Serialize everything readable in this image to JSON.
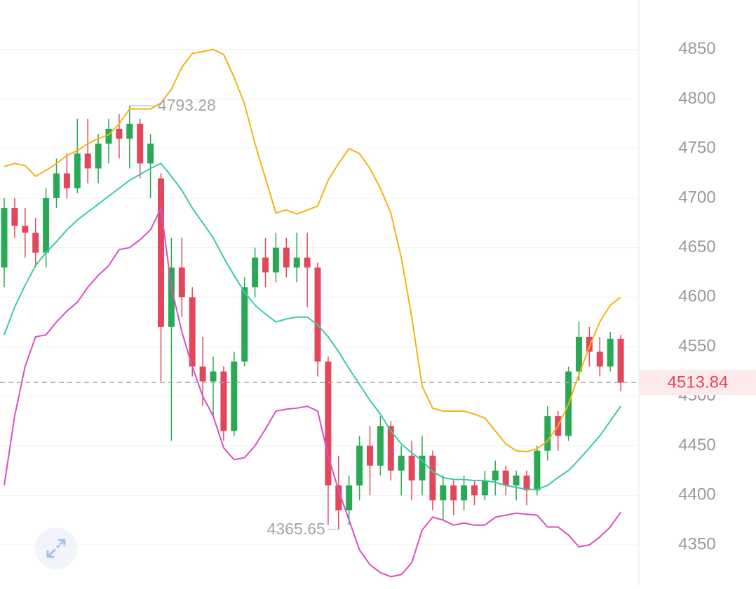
{
  "chart_data": {
    "type": "candlestick",
    "ylim": [
      4309,
      4900
    ],
    "yticks": [
      4350,
      4400,
      4450,
      4500,
      4550,
      4600,
      4650,
      4700,
      4750,
      4800,
      4850
    ],
    "grid": true,
    "up_color": "#2aa955",
    "down_color": "#e4475b",
    "open": [
      4630,
      4690,
      4672,
      4665,
      4645,
      4700,
      4725,
      4710,
      4745,
      4730,
      4755,
      4770,
      4760,
      4775,
      4735,
      4720,
      4570,
      4630,
      4600,
      4530,
      4515,
      4525,
      4465,
      4535,
      4610,
      4640,
      4625,
      4650,
      4630,
      4640,
      4630,
      4535,
      4410,
      4385,
      4410,
      4450,
      4430,
      4470,
      4425,
      4440,
      4415,
      4440,
      4395,
      4410,
      4395,
      4410,
      4400,
      4415,
      4425,
      4410,
      4420,
      4405,
      4445,
      4480,
      4460,
      4525,
      4560,
      4545,
      4530,
      4558
    ],
    "high": [
      4700,
      4700,
      4690,
      4680,
      4710,
      4740,
      4745,
      4780,
      4780,
      4765,
      4780,
      4785,
      4793.28,
      4780,
      4765,
      4725,
      4660,
      4660,
      4610,
      4560,
      4540,
      4530,
      4545,
      4620,
      4650,
      4660,
      4665,
      4660,
      4665,
      4665,
      4635,
      4540,
      4440,
      4420,
      4460,
      4470,
      4480,
      4475,
      4450,
      4455,
      4460,
      4445,
      4420,
      4415,
      4420,
      4415,
      4425,
      4435,
      4430,
      4425,
      4425,
      4450,
      4490,
      4485,
      4530,
      4575,
      4570,
      4560,
      4565,
      4562
    ],
    "low": [
      4610,
      4660,
      4640,
      4630,
      4630,
      4690,
      4700,
      4705,
      4715,
      4715,
      4735,
      4740,
      4730,
      4720,
      4700,
      4515,
      4455,
      4580,
      4520,
      4490,
      4480,
      4455,
      4460,
      4530,
      4600,
      4610,
      4615,
      4620,
      4615,
      4590,
      4520,
      4370,
      4365.65,
      4370,
      4395,
      4400,
      4420,
      4415,
      4400,
      4395,
      4400,
      4385,
      4375,
      4380,
      4385,
      4390,
      4395,
      4400,
      4400,
      4395,
      4390,
      4400,
      4435,
      4445,
      4455,
      4515,
      4530,
      4520,
      4525,
      4505
    ],
    "close": [
      4690,
      4672,
      4665,
      4645,
      4700,
      4725,
      4710,
      4745,
      4730,
      4755,
      4770,
      4760,
      4775,
      4735,
      4755,
      4570,
      4630,
      4600,
      4530,
      4515,
      4525,
      4465,
      4535,
      4610,
      4640,
      4625,
      4650,
      4630,
      4640,
      4630,
      4535,
      4410,
      4385,
      4410,
      4450,
      4430,
      4470,
      4425,
      4440,
      4415,
      4440,
      4395,
      4410,
      4395,
      4410,
      4400,
      4415,
      4425,
      4410,
      4420,
      4405,
      4445,
      4480,
      4460,
      4525,
      4560,
      4545,
      4530,
      4558,
      4513.84
    ],
    "lines": [
      {
        "color": "#f0b514",
        "values": [
          4732,
          4735,
          4733,
          4722,
          4728,
          4735,
          4743,
          4748,
          4755,
          4760,
          4764,
          4775,
          4790,
          4790,
          4790,
          4796,
          4810,
          4832,
          4846,
          4848,
          4850,
          4845,
          4822,
          4795,
          4755,
          4720,
          4685,
          4688,
          4684,
          4688,
          4692,
          4718,
          4735,
          4750,
          4745,
          4730,
          4710,
          4685,
          4640,
          4580,
          4510,
          4488,
          4485,
          4485,
          4485,
          4482,
          4478,
          4465,
          4452,
          4445,
          4444,
          4447,
          4455,
          4470,
          4492,
          4522,
          4550,
          4575,
          4592,
          4600
        ]
      },
      {
        "color": "#3ccaa4",
        "values": [
          4562,
          4590,
          4612,
          4632,
          4645,
          4656,
          4668,
          4678,
          4686,
          4694,
          4702,
          4710,
          4718,
          4724,
          4730,
          4735,
          4722,
          4708,
          4690,
          4675,
          4660,
          4640,
          4622,
          4605,
          4592,
          4583,
          4575,
          4578,
          4580,
          4580,
          4572,
          4560,
          4545,
          4528,
          4512,
          4496,
          4482,
          4465,
          4452,
          4443,
          4435,
          4424,
          4418,
          4416,
          4416,
          4415,
          4415,
          4413,
          4410,
          4408,
          4406,
          4406,
          4410,
          4418,
          4425,
          4436,
          4448,
          4460,
          4475,
          4490
        ]
      },
      {
        "color": "#d94fc0",
        "values": [
          4410,
          4480,
          4530,
          4560,
          4562,
          4575,
          4586,
          4595,
          4610,
          4622,
          4632,
          4648,
          4650,
          4658,
          4668,
          4690,
          4610,
          4565,
          4530,
          4500,
          4480,
          4448,
          4436,
          4438,
          4450,
          4467,
          4485,
          4487,
          4488,
          4490,
          4485,
          4440,
          4405,
          4375,
          4345,
          4330,
          4322,
          4318,
          4320,
          4332,
          4365,
          4378,
          4375,
          4370,
          4372,
          4370,
          4370,
          4378,
          4380,
          4382,
          4381,
          4380,
          4368,
          4368,
          4360,
          4348,
          4350,
          4358,
          4368,
          4383
        ]
      }
    ]
  }
}
